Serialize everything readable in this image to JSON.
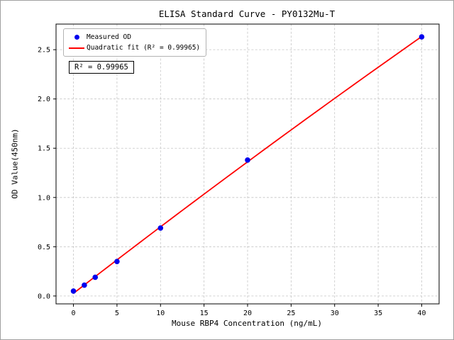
{
  "chart_data": {
    "type": "scatter",
    "title": "ELISA Standard Curve - PY0132Mu-T",
    "xlabel": "Mouse RBP4 Concentration (ng/mL)",
    "ylabel": "OD Value(450nm)",
    "xlim": [
      -2,
      42
    ],
    "ylim": [
      -0.08,
      2.76
    ],
    "xticks": [
      "0",
      "5",
      "10",
      "15",
      "20",
      "25",
      "30",
      "35",
      "40"
    ],
    "yticks": [
      "0.0",
      "0.5",
      "1.0",
      "1.5",
      "2.0",
      "2.5"
    ],
    "grid": true,
    "grid_style": "dashed",
    "grid_color": "#c4c4c4",
    "legend_position": "upper-left",
    "series": [
      {
        "name": "Measured OD",
        "type": "scatter",
        "color": "#0000ee",
        "x": [
          0,
          1.25,
          2.5,
          5,
          10,
          20,
          40
        ],
        "y": [
          0.05,
          0.11,
          0.19,
          0.35,
          0.69,
          1.38,
          2.63
        ]
      },
      {
        "name": "Quadratic fit (R² = 0.99965)",
        "type": "line",
        "color": "#ff0000",
        "fit": "quadratic",
        "r_squared": 0.99965
      }
    ],
    "annotation": "R² = 0.99965"
  }
}
